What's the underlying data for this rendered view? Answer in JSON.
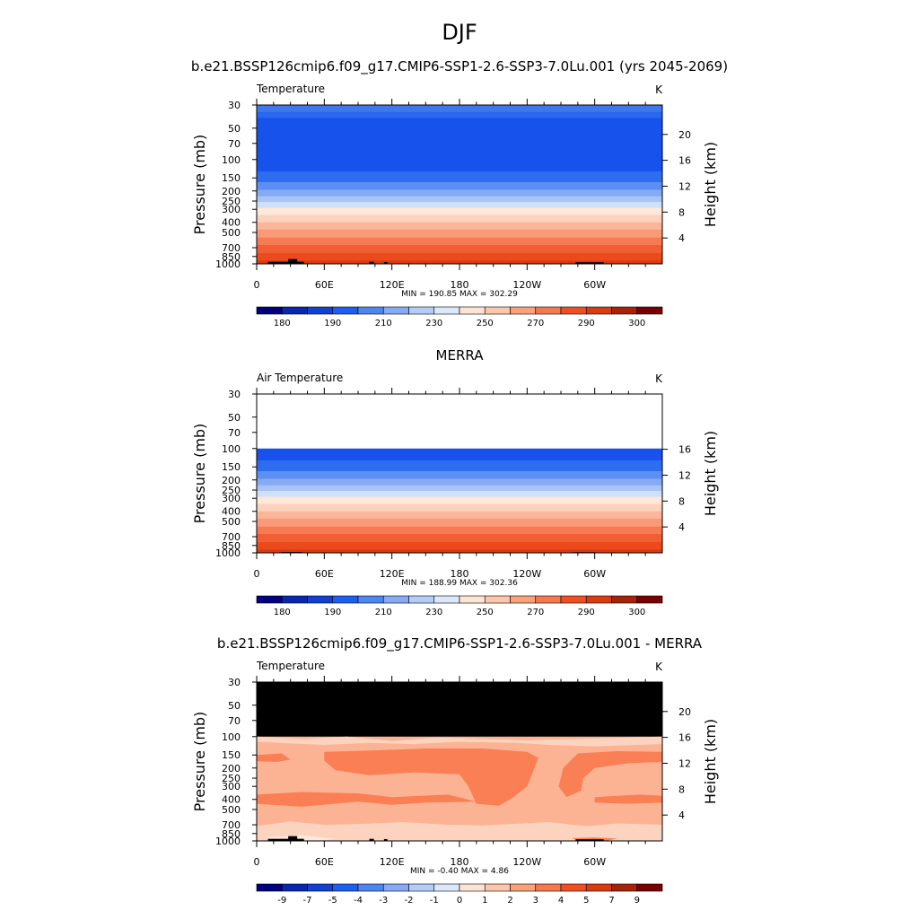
{
  "figure": {
    "main_title": "DJF",
    "panel_titles": [
      "b.e21.BSSP126cmip6.f09_g17.CMIP6-SSP1-2.6-SSP3-7.0Lu.001 (yrs 2045-2069)",
      "MERRA",
      "b.e21.BSSP126cmip6.f09_g17.CMIP6-SSP1-2.6-SSP3-7.0Lu.001 - MERRA"
    ]
  },
  "chart_data": [
    {
      "type": "heatmap",
      "title": "b.e21.BSSP126cmip6.f09_g17.CMIP6-SSP1-2.6-SSP3-7.0Lu.001 (yrs 2045-2069)",
      "variable_label": "Temperature",
      "units": "K",
      "xlabel": "",
      "ylabel": "Pressure (mb)",
      "y2label": "Height (km)",
      "x_ticks": [
        "0",
        "60E",
        "120E",
        "180",
        "120W",
        "60W"
      ],
      "y_ticks": [
        "30",
        "50",
        "70",
        "100",
        "150",
        "200",
        "250",
        "300",
        "400",
        "500",
        "700",
        "850",
        "1000"
      ],
      "y2_ticks": [
        "20",
        "16",
        "12",
        "8",
        "4"
      ],
      "min_max": "MIN = 190.85  MAX = 302.29",
      "colorbar_labels": [
        "180",
        "190",
        "210",
        "230",
        "250",
        "270",
        "290",
        "300"
      ],
      "colorbar_colors": [
        "#000080",
        "#0a26b0",
        "#1240d0",
        "#1e5ef0",
        "#4f85f2",
        "#86aaf4",
        "#b4ccf8",
        "#dbe8fc",
        "#fde3d3",
        "#fcc6aa",
        "#f9a07c",
        "#f6784e",
        "#f04f24",
        "#d93b12",
        "#a8220a",
        "#780000"
      ],
      "layers": [
        {
          "p_top": 30,
          "p_bottom": 35,
          "color": "#3f78ec"
        },
        {
          "p_top": 35,
          "p_bottom": 40,
          "color": "#2a66ee"
        },
        {
          "p_top": 40,
          "p_bottom": 130,
          "color": "#1752ec"
        },
        {
          "p_top": 130,
          "p_bottom": 165,
          "color": "#2f6df0"
        },
        {
          "p_top": 165,
          "p_bottom": 195,
          "color": "#5c8ff2"
        },
        {
          "p_top": 195,
          "p_bottom": 225,
          "color": "#86aaf4"
        },
        {
          "p_top": 225,
          "p_bottom": 255,
          "color": "#a9c4f6"
        },
        {
          "p_top": 255,
          "p_bottom": 290,
          "color": "#cfe0fa"
        },
        {
          "p_top": 290,
          "p_bottom": 340,
          "color": "#fde8da"
        },
        {
          "p_top": 340,
          "p_bottom": 400,
          "color": "#fcd2bc"
        },
        {
          "p_top": 400,
          "p_bottom": 470,
          "color": "#fab698"
        },
        {
          "p_top": 470,
          "p_bottom": 560,
          "color": "#f89a78"
        },
        {
          "p_top": 560,
          "p_bottom": 660,
          "color": "#f67b55"
        },
        {
          "p_top": 660,
          "p_bottom": 790,
          "color": "#f25e33"
        },
        {
          "p_top": 790,
          "p_bottom": 930,
          "color": "#ec4a1c"
        },
        {
          "p_top": 930,
          "p_bottom": 1000,
          "color": "#d83a10"
        }
      ],
      "terrain_blocks": [
        {
          "lon_start": 10,
          "lon_end": 42,
          "p_top": 955
        },
        {
          "lon_start": 28,
          "lon_end": 36,
          "p_top": 900
        },
        {
          "lon_start": 100,
          "lon_end": 104,
          "p_top": 955
        },
        {
          "lon_start": 113,
          "lon_end": 116,
          "p_top": 960
        },
        {
          "lon_start": 283,
          "lon_end": 308,
          "p_top": 965
        }
      ]
    },
    {
      "type": "heatmap",
      "title": "MERRA",
      "variable_label": "Air Temperature",
      "units": "K",
      "xlabel": "",
      "ylabel": "Pressure (mb)",
      "y2label": "Height (km)",
      "x_ticks": [
        "0",
        "60E",
        "120E",
        "180",
        "120W",
        "60W"
      ],
      "y_ticks": [
        "30",
        "50",
        "70",
        "100",
        "150",
        "200",
        "250",
        "300",
        "400",
        "500",
        "700",
        "850",
        "1000"
      ],
      "y2_ticks": [
        "16",
        "12",
        "8",
        "4"
      ],
      "min_max": "MIN = 188.99  MAX = 302.36",
      "colorbar_labels": [
        "180",
        "190",
        "210",
        "230",
        "250",
        "270",
        "290",
        "300"
      ],
      "colorbar_colors": [
        "#000080",
        "#0a26b0",
        "#1240d0",
        "#1e5ef0",
        "#4f85f2",
        "#86aaf4",
        "#b4ccf8",
        "#dbe8fc",
        "#fde3d3",
        "#fcc6aa",
        "#f9a07c",
        "#f6784e",
        "#f04f24",
        "#d93b12",
        "#a8220a",
        "#780000"
      ],
      "layers": [
        {
          "p_top": 100,
          "p_bottom": 130,
          "color": "#1752ec"
        },
        {
          "p_top": 130,
          "p_bottom": 165,
          "color": "#2f6df0"
        },
        {
          "p_top": 165,
          "p_bottom": 195,
          "color": "#5c8ff2"
        },
        {
          "p_top": 195,
          "p_bottom": 225,
          "color": "#86aaf4"
        },
        {
          "p_top": 225,
          "p_bottom": 255,
          "color": "#a9c4f6"
        },
        {
          "p_top": 255,
          "p_bottom": 290,
          "color": "#cfe0fa"
        },
        {
          "p_top": 290,
          "p_bottom": 340,
          "color": "#fde8da"
        },
        {
          "p_top": 340,
          "p_bottom": 400,
          "color": "#fcd2bc"
        },
        {
          "p_top": 400,
          "p_bottom": 470,
          "color": "#fab698"
        },
        {
          "p_top": 470,
          "p_bottom": 560,
          "color": "#f89a78"
        },
        {
          "p_top": 560,
          "p_bottom": 660,
          "color": "#f67b55"
        },
        {
          "p_top": 660,
          "p_bottom": 790,
          "color": "#f25e33"
        },
        {
          "p_top": 790,
          "p_bottom": 930,
          "color": "#ec4a1c"
        },
        {
          "p_top": 930,
          "p_bottom": 1000,
          "color": "#d83a10"
        }
      ],
      "terrain_blocks": [
        {
          "lon_start": 22,
          "lon_end": 40,
          "p_top": 980
        },
        {
          "lon_start": 280,
          "lon_end": 300,
          "p_top": 985
        }
      ]
    },
    {
      "type": "heatmap",
      "title": "b.e21.BSSP126cmip6.f09_g17.CMIP6-SSP1-2.6-SSP3-7.0Lu.001 - MERRA",
      "variable_label": "Temperature",
      "units": "K",
      "xlabel": "",
      "ylabel": "Pressure (mb)",
      "y2label": "Height (km)",
      "x_ticks": [
        "0",
        "60E",
        "120E",
        "180",
        "120W",
        "60W"
      ],
      "y_ticks": [
        "30",
        "50",
        "70",
        "100",
        "150",
        "200",
        "250",
        "300",
        "400",
        "500",
        "700",
        "850",
        "1000"
      ],
      "y2_ticks": [
        "20",
        "16",
        "12",
        "8",
        "4"
      ],
      "min_max": "MIN =  -0.40  MAX =   4.86",
      "colorbar_labels": [
        "-9",
        "-7",
        "-5",
        "-4",
        "-3",
        "-2",
        "-1",
        "0",
        "1",
        "2",
        "3",
        "4",
        "5",
        "7",
        "9"
      ],
      "colorbar_colors": [
        "#000080",
        "#0a26b0",
        "#1240d0",
        "#1e5ef0",
        "#4f85f2",
        "#86aaf4",
        "#b4ccf8",
        "#dbe8fc",
        "#fde3d3",
        "#fcc6aa",
        "#f9a07c",
        "#f6784e",
        "#f04f24",
        "#d93b12",
        "#a8220a",
        "#780000"
      ],
      "no_data_region": {
        "p_top": 30,
        "p_bottom": 100,
        "color": "#000000"
      },
      "background_color": "#fcb394",
      "regions": [
        {
          "color": "#fcd3bf",
          "points": [
            [
              0,
              100
            ],
            [
              40,
              105
            ],
            [
              80,
              100
            ],
            [
              120,
              110
            ],
            [
              160,
              102
            ],
            [
              240,
              108
            ],
            [
              300,
              104
            ],
            [
              360,
              100
            ],
            [
              360,
              118
            ],
            [
              300,
              124
            ],
            [
              260,
              120
            ],
            [
              230,
              115
            ],
            [
              180,
              112
            ],
            [
              140,
              118
            ],
            [
              100,
              115
            ],
            [
              60,
              120
            ],
            [
              20,
              115
            ],
            [
              0,
              112
            ]
          ]
        },
        {
          "color": "#fa7f55",
          "points": [
            [
              0,
              150
            ],
            [
              22,
              145
            ],
            [
              30,
              165
            ],
            [
              18,
              175
            ],
            [
              0,
              172
            ]
          ]
        },
        {
          "color": "#fa7f55",
          "points": [
            [
              60,
              140
            ],
            [
              110,
              135
            ],
            [
              150,
              130
            ],
            [
              200,
              130
            ],
            [
              240,
              140
            ],
            [
              250,
              160
            ],
            [
              245,
              220
            ],
            [
              240,
              300
            ],
            [
              228,
              380
            ],
            [
              215,
              460
            ],
            [
              195,
              440
            ],
            [
              188,
              300
            ],
            [
              180,
              230
            ],
            [
              140,
              220
            ],
            [
              100,
              235
            ],
            [
              70,
              210
            ],
            [
              60,
              170
            ]
          ]
        },
        {
          "color": "#fa7f55",
          "points": [
            [
              285,
              145
            ],
            [
              320,
              138
            ],
            [
              360,
              140
            ],
            [
              360,
              175
            ],
            [
              330,
              180
            ],
            [
              300,
              200
            ],
            [
              290,
              250
            ],
            [
              288,
              330
            ],
            [
              275,
              380
            ],
            [
              268,
              300
            ],
            [
              272,
              200
            ]
          ]
        },
        {
          "color": "#fa7f55",
          "points": [
            [
              0,
              360
            ],
            [
              40,
              340
            ],
            [
              90,
              350
            ],
            [
              120,
              380
            ],
            [
              170,
              360
            ],
            [
              195,
              420
            ],
            [
              150,
              430
            ],
            [
              120,
              450
            ],
            [
              90,
              420
            ],
            [
              40,
              470
            ],
            [
              0,
              440
            ]
          ]
        },
        {
          "color": "#fa7f55",
          "points": [
            [
              300,
              380
            ],
            [
              340,
              360
            ],
            [
              360,
              370
            ],
            [
              360,
              430
            ],
            [
              330,
              440
            ],
            [
              300,
              430
            ]
          ]
        },
        {
          "color": "#fcd3bf",
          "points": [
            [
              0,
              720
            ],
            [
              30,
              650
            ],
            [
              60,
              700
            ],
            [
              90,
              690
            ],
            [
              130,
              660
            ],
            [
              170,
              700
            ],
            [
              200,
              710
            ],
            [
              260,
              660
            ],
            [
              280,
              700
            ],
            [
              295,
              720
            ],
            [
              320,
              680
            ],
            [
              360,
              700
            ],
            [
              360,
              1000
            ],
            [
              0,
              1000
            ]
          ]
        },
        {
          "color": "#fde8dc",
          "points": [
            [
              10,
              920
            ],
            [
              40,
              880
            ],
            [
              70,
              960
            ],
            [
              50,
              1000
            ],
            [
              10,
              1000
            ]
          ]
        },
        {
          "color": "#fa7f55",
          "points": [
            [
              280,
              940
            ],
            [
              300,
              925
            ],
            [
              320,
              950
            ],
            [
              310,
              1000
            ],
            [
              285,
              1000
            ]
          ]
        }
      ],
      "terrain_blocks": [
        {
          "lon_start": 10,
          "lon_end": 42,
          "p_top": 955
        },
        {
          "lon_start": 28,
          "lon_end": 36,
          "p_top": 900
        },
        {
          "lon_start": 100,
          "lon_end": 104,
          "p_top": 955
        },
        {
          "lon_start": 113,
          "lon_end": 116,
          "p_top": 960
        },
        {
          "lon_start": 283,
          "lon_end": 308,
          "p_top": 965
        }
      ]
    }
  ]
}
